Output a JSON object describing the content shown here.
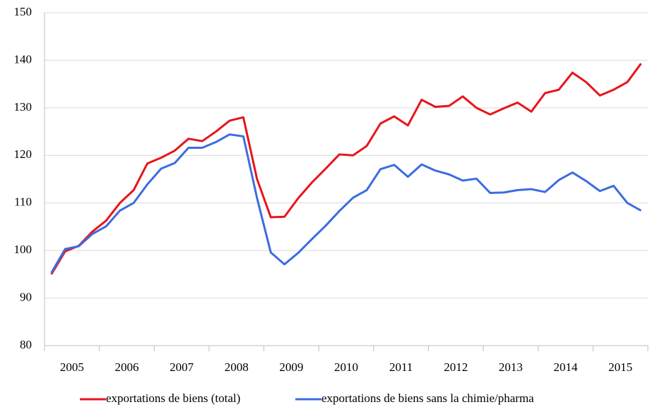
{
  "chart_data": {
    "type": "line",
    "categories": [
      "2005",
      null,
      null,
      null,
      "2006",
      null,
      null,
      null,
      "2007",
      null,
      null,
      null,
      "2008",
      null,
      null,
      null,
      "2009",
      null,
      null,
      null,
      "2010",
      null,
      null,
      null,
      "2011",
      null,
      null,
      null,
      "2012",
      null,
      null,
      null,
      "2013",
      null,
      null,
      null,
      "2014",
      null,
      null,
      null,
      "2015",
      null,
      null,
      null
    ],
    "series": [
      {
        "name": "exportations de biens (total)",
        "color": "#e8141c",
        "values": [
          95,
          99.8,
          101,
          104,
          106.3,
          110,
          112.7,
          118.3,
          119.5,
          121,
          123.5,
          123,
          125,
          127.3,
          128,
          115,
          107,
          107.1,
          111,
          114.3,
          117.2,
          120.2,
          120,
          122,
          126.7,
          128.2,
          126.3,
          131.7,
          130.2,
          130.4,
          132.4,
          130,
          128.6,
          129.9,
          131.1,
          129.2,
          133.1,
          133.8,
          137.4,
          135.4,
          132.6,
          133.8,
          135.4,
          139.3
        ]
      },
      {
        "name": "exportations de biens sans la chimie/pharma",
        "color": "#3d6ce0",
        "values": [
          95.3,
          100.3,
          100.9,
          103.5,
          105.1,
          108.4,
          110,
          113.9,
          117.2,
          118.4,
          121.6,
          121.6,
          122.8,
          124.4,
          124,
          111,
          99.6,
          97.1,
          99.5,
          102.4,
          105.2,
          108.3,
          111.1,
          112.7,
          117.1,
          118,
          115.5,
          118.1,
          116.8,
          116,
          114.7,
          115.1,
          112.1,
          112.2,
          112.7,
          112.9,
          112.3,
          114.8,
          116.4,
          114.6,
          112.5,
          113.6,
          110,
          108.4
        ]
      }
    ],
    "ylim": [
      80,
      150
    ],
    "yticks": [
      80,
      90,
      100,
      110,
      120,
      130,
      140,
      150
    ],
    "grid": true,
    "legend": "bottom"
  }
}
